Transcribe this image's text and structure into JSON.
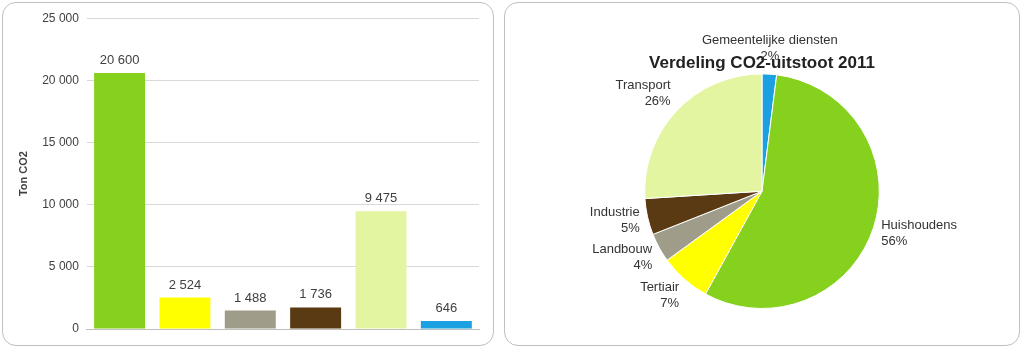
{
  "chart_data": [
    {
      "type": "bar",
      "ylabel": "Ton CO2",
      "categories": [
        null,
        null,
        null,
        null,
        null,
        null
      ],
      "values": [
        20600,
        2524,
        1488,
        1736,
        9475,
        646
      ],
      "value_labels": [
        "20 600",
        "2 524",
        "1 488",
        "1 736",
        "9 475",
        "646"
      ],
      "colors": [
        "#86d11e",
        "#ffff00",
        "#a09c8a",
        "#5a3a12",
        "#e4f5a2",
        "#1ba1e2"
      ],
      "ylim": [
        0,
        25000
      ],
      "yticks": [
        0,
        {
          "value": 5000,
          "label": "5 000"
        },
        {
          "value": 10000,
          "label": "10 000"
        },
        {
          "value": 15000,
          "label": "15 000"
        },
        {
          "value": 20000,
          "label": "20 000"
        },
        {
          "value": 25000,
          "label": "25 000"
        }
      ],
      "grid": true,
      "data_labels": true,
      "tick_labels": "y"
    },
    {
      "type": "pie",
      "title": "Verdeling CO2-uitstoot 2011",
      "categories": [
        "Gemeentelijke diensten",
        "Huishoudens",
        "Tertiair",
        "Landbouw",
        "Industrie",
        "Transport"
      ],
      "values": [
        2,
        56,
        7,
        4,
        5,
        26
      ],
      "value_labels": [
        "2%",
        "56%",
        "7%",
        "4%",
        "5%",
        "26%"
      ],
      "colors": [
        "#1ba1e2",
        "#86d11e",
        "#ffff00",
        "#a09c8a",
        "#5a3a12",
        "#e4f5a2"
      ],
      "data_labels": true
    }
  ]
}
